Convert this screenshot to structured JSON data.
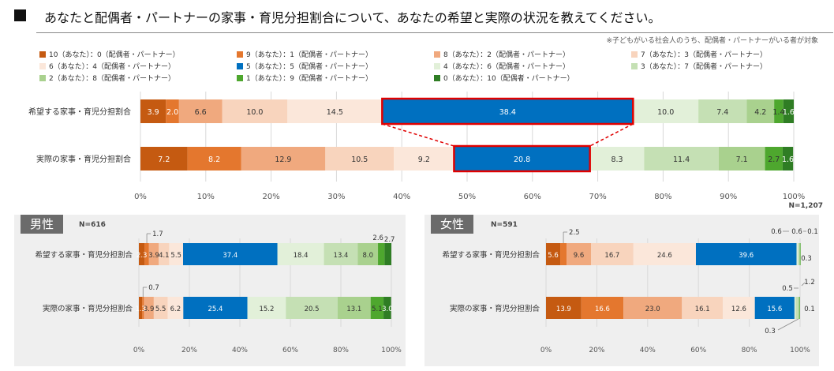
{
  "title": "あなたと配偶者・パートナーの家事・育児分担割合について、あなたの希望と実際の状況を教えてください。",
  "note": "※子どもがいる社会人のうち、配偶者・パートナーがいる者が対象",
  "total_n": "N=1,207",
  "legend": [
    {
      "label": "10（あなた）：0（配偶者・パートナー）",
      "color": "#c55a11"
    },
    {
      "label": "9（あなた）：1（配偶者・パートナー）",
      "color": "#e4772e"
    },
    {
      "label": "8（あなた）：2（配偶者・パートナー）",
      "color": "#f0a97e"
    },
    {
      "label": "7（あなた）：3（配偶者・パートナー）",
      "color": "#f8d4bd"
    },
    {
      "label": "6（あなた）：4（配偶者・パートナー）",
      "color": "#fbe7da"
    },
    {
      "label": "5（あなた）：5（配偶者・パートナー）",
      "color": "#0070c0"
    },
    {
      "label": "4（あなた）：6（配偶者・パートナー）",
      "color": "#e2f0d9"
    },
    {
      "label": "3（あなた）：7（配偶者・パートナー）",
      "color": "#c5e0b4"
    },
    {
      "label": "2（あなた）：8（配偶者・パートナー）",
      "color": "#a9d18e"
    },
    {
      "label": "1（あなた）：9（配偶者・パートナー）",
      "color": "#4ea72e"
    },
    {
      "label": "0（あなた）：10（配偶者・パートナー）",
      "color": "#2f7d24"
    }
  ],
  "chart_data": [
    {
      "type": "bar",
      "orientation": "horizontal-stacked-100",
      "title": "",
      "n": "N=1,207",
      "categories": [
        "希望する家事・育児分担割合",
        "実際の家事・育児分担割合"
      ],
      "series": [
        {
          "name": "10（あなた）：0（配偶者・パートナー）",
          "values": [
            3.9,
            7.2
          ]
        },
        {
          "name": "9（あなた）：1（配偶者・パートナー）",
          "values": [
            2.0,
            8.2
          ]
        },
        {
          "name": "8（あなた）：2（配偶者・パートナー）",
          "values": [
            6.6,
            12.9
          ]
        },
        {
          "name": "7（あなた）：3（配偶者・パートナー）",
          "values": [
            10.0,
            10.5
          ]
        },
        {
          "name": "6（あなた）：4（配偶者・パートナー）",
          "values": [
            14.5,
            9.2
          ]
        },
        {
          "name": "5（あなた）：5（配偶者・パートナー）",
          "values": [
            38.4,
            20.8
          ]
        },
        {
          "name": "4（あなた）：6（配偶者・パートナー）",
          "values": [
            10.0,
            8.3
          ]
        },
        {
          "name": "3（あなた）：7（配偶者・パートナー）",
          "values": [
            7.4,
            11.4
          ]
        },
        {
          "name": "2（あなた）：8（配偶者・パートナー）",
          "values": [
            4.2,
            7.1
          ]
        },
        {
          "name": "1（あなた）：9（配偶者・パートナー）",
          "values": [
            1.4,
            2.7
          ]
        },
        {
          "name": "0（あなた）：10（配偶者・パートナー）",
          "values": [
            1.6,
            1.6
          ]
        }
      ],
      "xticks": [
        "0%",
        "10%",
        "20%",
        "30%",
        "40%",
        "50%",
        "60%",
        "70%",
        "80%",
        "90%",
        "100%"
      ],
      "xlim": [
        0,
        100
      ],
      "highlight_series": "5（あなた）：5（配偶者・パートナー）"
    },
    {
      "type": "bar",
      "orientation": "horizontal-stacked-100",
      "title": "男性",
      "n": "N=616",
      "categories": [
        "希望する家事・育児分担割合",
        "実際の家事・育児分担割合"
      ],
      "series": [
        {
          "name": "10（あなた）：0（配偶者・パートナー）",
          "values": [
            2.3,
            1.3
          ]
        },
        {
          "name": "9（あなた）：1（配偶者・パートナー）",
          "values": [
            1.7,
            0.7
          ]
        },
        {
          "name": "8（あなた）：2（配偶者・パートナー）",
          "values": [
            3.9,
            3.9
          ]
        },
        {
          "name": "7（あなた）：3（配偶者・パートナー）",
          "values": [
            4.1,
            5.5
          ]
        },
        {
          "name": "6（あなた）：4（配偶者・パートナー）",
          "values": [
            5.5,
            6.2
          ]
        },
        {
          "name": "5（あなた）：5（配偶者・パートナー）",
          "values": [
            37.4,
            25.4
          ]
        },
        {
          "name": "4（あなた）：6（配偶者・パートナー）",
          "values": [
            18.4,
            15.2
          ]
        },
        {
          "name": "3（あなた）：7（配偶者・パートナー）",
          "values": [
            13.4,
            20.5
          ]
        },
        {
          "name": "2（あなた）：8（配偶者・パートナー）",
          "values": [
            8.0,
            13.1
          ]
        },
        {
          "name": "1（あなた）：9（配偶者・パートナー）",
          "values": [
            2.6,
            5.1
          ]
        },
        {
          "name": "0（あなた）：10（配偶者・パートナー）",
          "values": [
            2.7,
            3.0
          ]
        }
      ],
      "xticks": [
        "0%",
        "20%",
        "40%",
        "60%",
        "80%",
        "100%"
      ],
      "xlim": [
        0,
        100
      ]
    },
    {
      "type": "bar",
      "orientation": "horizontal-stacked-100",
      "title": "女性",
      "n": "N=591",
      "categories": [
        "希望する家事・育児分担割合",
        "実際の家事・育児分担割合"
      ],
      "series": [
        {
          "name": "10（あなた）：0（配偶者・パートナー）",
          "values": [
            5.6,
            13.9
          ]
        },
        {
          "name": "9（あなた）：1（配偶者・パートナー）",
          "values": [
            2.5,
            16.6
          ]
        },
        {
          "name": "8（あなた）：2（配偶者・パートナー）",
          "values": [
            9.6,
            23.0
          ]
        },
        {
          "name": "7（あなた）：3（配偶者・パートナー）",
          "values": [
            16.7,
            16.1
          ]
        },
        {
          "name": "6（あなた）：4（配偶者・パートナー）",
          "values": [
            24.6,
            12.6
          ]
        },
        {
          "name": "5（あなた）：5（配偶者・パートナー）",
          "values": [
            39.6,
            15.6
          ]
        },
        {
          "name": "4（あなた）：6（配偶者・パートナー）",
          "values": [
            0.6,
            0.5
          ]
        },
        {
          "name": "3（あなた）：7（配偶者・パートナー）",
          "values": [
            0.6,
            1.2
          ]
        },
        {
          "name": "2（あなた）：8（配偶者・パートナー）",
          "values": [
            0.1,
            0.1
          ]
        },
        {
          "name": "1（あなた）：9（配偶者・パートナー）",
          "values": [
            0.3,
            0.3
          ]
        },
        {
          "name": "0（あなた）：10（配偶者・パートナー）",
          "values": [
            0.0,
            0.0
          ]
        }
      ],
      "xticks": [
        "0%",
        "20%",
        "40%",
        "60%",
        "80%",
        "100%"
      ],
      "xlim": [
        0,
        100
      ]
    }
  ]
}
